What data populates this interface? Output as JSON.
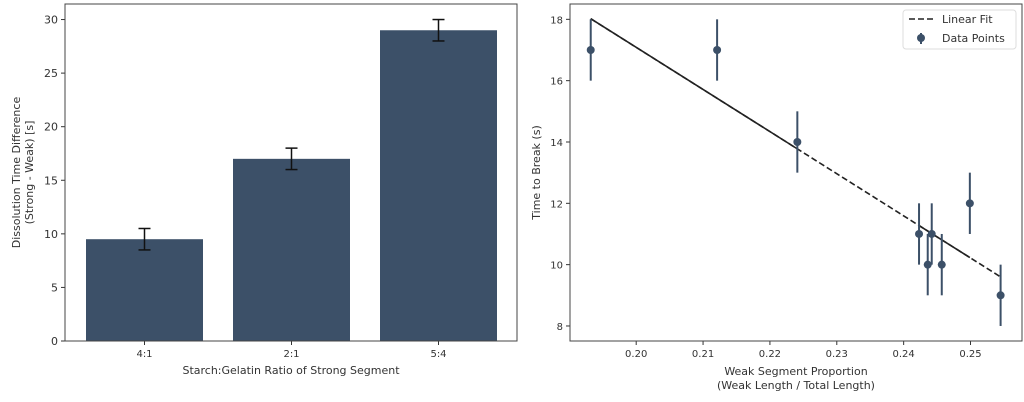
{
  "chart_data": [
    {
      "type": "bar",
      "categories": [
        "4:1",
        "2:1",
        "5:4"
      ],
      "values": [
        9.5,
        17,
        29
      ],
      "errors": [
        1,
        1,
        1
      ],
      "xlabel": "Starch:Gelatin Ratio of Strong Segment",
      "ylabel": [
        "Dissolution Time Difference",
        "(Strong - Weak) [s]"
      ],
      "ylim": [
        0,
        31.45
      ],
      "yticks": [
        0,
        5,
        10,
        15,
        20,
        25,
        30
      ],
      "color": "#3c5068",
      "grid": false
    },
    {
      "type": "scatter",
      "series": [
        {
          "name": "Data Points",
          "x": [
            0.1932,
            0.2121,
            0.2241,
            0.2423,
            0.2436,
            0.2442,
            0.2457,
            0.2499,
            0.2545
          ],
          "y": [
            17,
            17,
            14,
            11,
            10,
            11,
            10,
            12,
            9
          ],
          "yerr": [
            1,
            1,
            1,
            1,
            1,
            1,
            1,
            1,
            1
          ]
        },
        {
          "name": "Linear Fit",
          "x": [
            0.1932,
            0.2545
          ],
          "y": [
            18.02,
            9.6
          ]
        }
      ],
      "xlabel": [
        "Weak Segment Proportion",
        "(Weak Length / Total Length)"
      ],
      "ylabel": "Time to Break (s)",
      "xlim": [
        0.1901,
        0.2577
      ],
      "ylim": [
        7.51,
        18.5
      ],
      "xticks": [
        "0.20",
        "0.21",
        "0.22",
        "0.23",
        "0.24",
        "0.25"
      ],
      "yticks": [
        8,
        10,
        12,
        14,
        16,
        18
      ],
      "legend": "top-right",
      "color": "#3c5068",
      "grid": false
    }
  ]
}
